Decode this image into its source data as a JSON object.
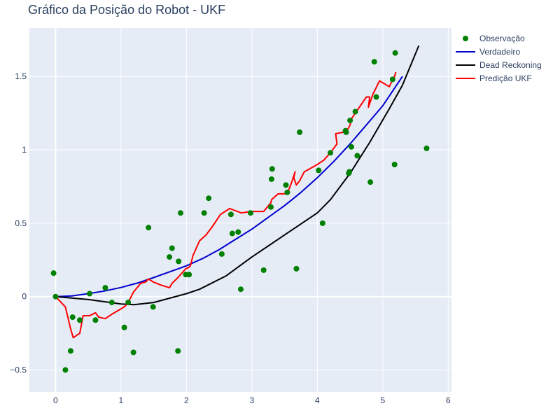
{
  "chart_data": {
    "type": "scatter",
    "title": "Gráfico da Posição do Robot - UKF",
    "xlabel": "",
    "ylabel": "",
    "xlim": [
      -0.4,
      6.05
    ],
    "ylim": [
      -0.65,
      1.83
    ],
    "x_ticks": [
      0,
      1,
      2,
      3,
      4,
      5,
      6
    ],
    "y_ticks": [
      -0.5,
      0,
      0.5,
      1,
      1.5
    ],
    "grid": true,
    "legend_position": "right",
    "background": "#e5ecf6",
    "series": [
      {
        "name": "Observação",
        "mode": "markers",
        "color": "#008000",
        "x": [
          -0.03,
          0.0,
          0.15,
          0.23,
          0.26,
          0.37,
          0.52,
          0.61,
          0.76,
          0.86,
          1.05,
          1.11,
          1.19,
          1.42,
          1.49,
          1.74,
          1.78,
          1.88,
          1.87,
          1.91,
          1.99,
          2.04,
          2.27,
          2.34,
          2.54,
          2.68,
          2.7,
          2.79,
          2.83,
          2.98,
          3.18,
          3.29,
          3.3,
          3.31,
          3.52,
          3.54,
          3.68,
          3.73,
          4.02,
          4.08,
          4.2,
          4.43,
          4.44,
          4.48,
          4.49,
          4.5,
          4.52,
          4.58,
          4.61,
          4.81,
          4.87,
          4.9,
          5.15,
          5.18,
          5.19,
          5.67
        ],
        "y": [
          0.16,
          0.0,
          -0.5,
          -0.37,
          -0.14,
          -0.16,
          0.02,
          -0.16,
          0.06,
          -0.04,
          -0.21,
          -0.04,
          -0.38,
          0.47,
          -0.07,
          0.27,
          0.33,
          0.24,
          -0.37,
          0.57,
          0.15,
          0.15,
          0.57,
          0.67,
          0.29,
          0.56,
          0.43,
          0.44,
          0.05,
          0.57,
          0.18,
          0.61,
          0.8,
          0.87,
          0.76,
          0.71,
          0.19,
          1.12,
          0.86,
          0.5,
          0.98,
          1.13,
          1.12,
          0.84,
          0.85,
          1.2,
          1.02,
          1.26,
          0.96,
          0.78,
          1.6,
          1.36,
          1.48,
          0.9,
          1.66,
          1.01
        ]
      },
      {
        "name": "Verdadeiro",
        "mode": "lines",
        "color": "#0000cc",
        "x": [
          0,
          0.25,
          0.5,
          0.75,
          1.0,
          1.25,
          1.5,
          1.75,
          2.0,
          2.25,
          2.5,
          2.75,
          3.0,
          3.25,
          3.5,
          3.75,
          4.0,
          4.25,
          4.5,
          4.75,
          5.0,
          5.3
        ],
        "y": [
          0,
          0.005,
          0.02,
          0.038,
          0.062,
          0.092,
          0.13,
          0.17,
          0.21,
          0.26,
          0.32,
          0.39,
          0.46,
          0.54,
          0.62,
          0.71,
          0.81,
          0.92,
          1.04,
          1.17,
          1.3,
          1.5
        ]
      },
      {
        "name": "Dead Reckoning",
        "mode": "lines",
        "color": "#000000",
        "x": [
          0,
          0.5,
          1.0,
          1.2,
          1.5,
          2.0,
          2.2,
          2.6,
          3.0,
          3.5,
          4.0,
          4.2,
          4.5,
          4.8,
          5.1,
          5.3,
          5.55
        ],
        "y": [
          0,
          -0.02,
          -0.05,
          -0.055,
          -0.04,
          0.02,
          0.05,
          0.14,
          0.27,
          0.42,
          0.57,
          0.66,
          0.84,
          1.05,
          1.28,
          1.44,
          1.71
        ]
      },
      {
        "name": "Predição UKF",
        "mode": "lines",
        "color": "#ff0000",
        "x": [
          0,
          0.15,
          0.23,
          0.27,
          0.37,
          0.42,
          0.52,
          0.61,
          0.66,
          0.76,
          0.86,
          1.05,
          1.11,
          1.19,
          1.3,
          1.38,
          1.42,
          1.49,
          1.6,
          1.74,
          1.78,
          1.87,
          1.91,
          1.99,
          2.04,
          2.06,
          2.1,
          2.2,
          2.3,
          2.4,
          2.52,
          2.66,
          2.72,
          2.84,
          2.98,
          3.18,
          3.29,
          3.3,
          3.4,
          3.52,
          3.54,
          3.6,
          3.66,
          3.64,
          3.68,
          3.73,
          3.8,
          4.0,
          4.1,
          4.2,
          4.3,
          4.28,
          4.4,
          4.43,
          4.48,
          4.5,
          4.52,
          4.58,
          4.61,
          4.75,
          4.8,
          4.78,
          4.85,
          4.95,
          5.1,
          5.15,
          5.18,
          5.2
        ],
        "y": [
          0,
          -0.07,
          -0.22,
          -0.28,
          -0.25,
          -0.13,
          -0.13,
          -0.11,
          -0.14,
          -0.15,
          -0.12,
          -0.07,
          -0.04,
          0.03,
          0.09,
          0.1,
          0.12,
          0.1,
          0.08,
          0.06,
          0.09,
          0.13,
          0.15,
          0.19,
          0.2,
          0.21,
          0.28,
          0.38,
          0.42,
          0.48,
          0.56,
          0.6,
          0.59,
          0.57,
          0.58,
          0.58,
          0.64,
          0.66,
          0.7,
          0.7,
          0.7,
          0.77,
          0.85,
          0.81,
          0.76,
          0.79,
          0.85,
          0.9,
          0.93,
          0.98,
          1.04,
          1.11,
          1.12,
          1.12,
          1.15,
          1.17,
          1.21,
          1.25,
          1.27,
          1.36,
          1.36,
          1.29,
          1.38,
          1.47,
          1.43,
          1.48,
          1.5,
          1.53
        ]
      }
    ]
  }
}
